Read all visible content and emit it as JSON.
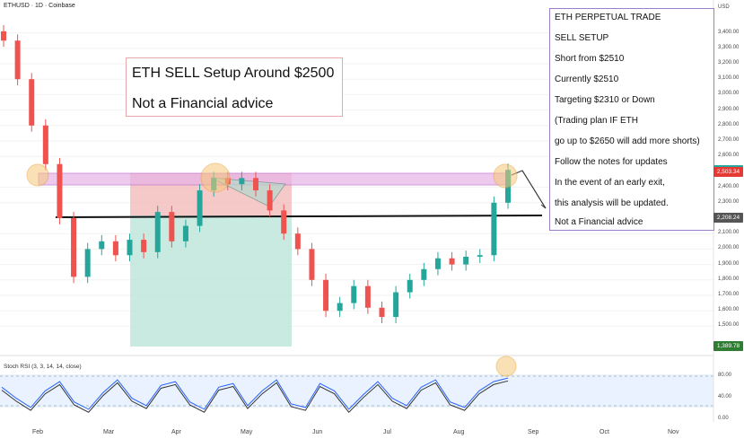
{
  "header": {
    "symbol": "ETHUSD · 1D · Coinbase",
    "currency": "USD"
  },
  "title_box": {
    "line1": "ETH SELL Setup Around $2500",
    "line2": "Not a Financial advice"
  },
  "notes": [
    "ETH PERPETUAL TRADE",
    "SELL SETUP",
    "Short from $2510",
    "Currently $2510",
    "Targeting $2310 or Down",
    "(Trading plan IF ETH",
    "go up to $2650 will add more shorts)",
    "Follow the notes for updates",
    "In the event of an early exit,",
    "this analysis will be updated.",
    "Not a Financial advice"
  ],
  "price_tags": [
    {
      "label": "2,512.73",
      "value": 2512.73,
      "color": "#26a69a"
    },
    {
      "label": "2,503.34",
      "value": 2503.34,
      "color": "#e53935"
    },
    {
      "label": "2,208.24",
      "value": 2208.24,
      "color": "#555555"
    },
    {
      "label": "1,389.78",
      "value": 1389.78,
      "color": "#2e7d32"
    }
  ],
  "rsi": {
    "label": "Stoch RSI (3, 3, 14, 14, close)",
    "ticks": [
      "80.00",
      "40.00",
      "0.00"
    ]
  },
  "chart_data": {
    "type": "candlestick",
    "title": "",
    "ylabel": "USD",
    "y_ticks": [
      "3,400.00",
      "3,300.00",
      "3,200.00",
      "3,100.00",
      "3,000.00",
      "2,900.00",
      "2,800.00",
      "2,700.00",
      "2,600.00",
      "2,400.00",
      "2,300.00",
      "2,100.00",
      "2,000.00",
      "1,900.00",
      "1,800.00",
      "1,700.00",
      "1,600.00",
      "1,500.00"
    ],
    "ylim": [
      1450,
      3450
    ],
    "x_ticks": [
      "Feb",
      "Mar",
      "Apr",
      "May",
      "Jun",
      "Jul",
      "Aug",
      "Sep",
      "Oct",
      "Nov"
    ],
    "resistance_zone": [
      2440,
      2540
    ],
    "support_level": 2220,
    "current_price": 2512.73,
    "target": 2310,
    "short_entry": 2510,
    "series": [
      {
        "x": "Jan 20",
        "close": 3350
      },
      {
        "x": "Jan 25",
        "close": 3100
      },
      {
        "x": "Jan 30",
        "close": 2800
      },
      {
        "x": "Feb 3",
        "close": 2550
      },
      {
        "x": "Feb 6",
        "close": 2200
      },
      {
        "x": "Feb 9",
        "close": 1820
      },
      {
        "x": "Feb 15",
        "close": 2000
      },
      {
        "x": "Feb 22",
        "close": 2050
      },
      {
        "x": "Mar 1",
        "close": 1960
      },
      {
        "x": "Mar 8",
        "close": 2060
      },
      {
        "x": "Mar 15",
        "close": 1980
      },
      {
        "x": "Mar 22",
        "close": 2240
      },
      {
        "x": "Mar 29",
        "close": 2050
      },
      {
        "x": "Apr 5",
        "close": 2150
      },
      {
        "x": "Apr 12",
        "close": 2380
      },
      {
        "x": "Apr 19",
        "close": 2460
      },
      {
        "x": "Apr 26",
        "close": 2420
      },
      {
        "x": "May 3",
        "close": 2460
      },
      {
        "x": "May 10",
        "close": 2380
      },
      {
        "x": "May 17",
        "close": 2250
      },
      {
        "x": "May 24",
        "close": 2100
      },
      {
        "x": "May 31",
        "close": 2000
      },
      {
        "x": "Jun 7",
        "close": 1800
      },
      {
        "x": "Jun 14",
        "close": 1600
      },
      {
        "x": "Jun 21",
        "close": 1650
      },
      {
        "x": "Jun 28",
        "close": 1760
      },
      {
        "x": "Jul 5",
        "close": 1620
      },
      {
        "x": "Jul 12",
        "close": 1560
      },
      {
        "x": "Jul 19",
        "close": 1720
      },
      {
        "x": "Jul 26",
        "close": 1800
      },
      {
        "x": "Aug 2",
        "close": 1870
      },
      {
        "x": "Aug 9",
        "close": 1940
      },
      {
        "x": "Aug 16",
        "close": 1900
      },
      {
        "x": "Aug 23",
        "close": 1950
      },
      {
        "x": "Aug 30",
        "close": 1960
      },
      {
        "x": "Sep 3",
        "close": 2300
      },
      {
        "x": "Sep 6",
        "close": 2513
      }
    ],
    "stoch_rsi": [
      70,
      40,
      15,
      60,
      85,
      30,
      10,
      55,
      90,
      40,
      20,
      75,
      85,
      30,
      10,
      70,
      80,
      20,
      60,
      90,
      25,
      15,
      80,
      60,
      10,
      50,
      85,
      40,
      20,
      70,
      90,
      30,
      15,
      60,
      85,
      95
    ]
  }
}
